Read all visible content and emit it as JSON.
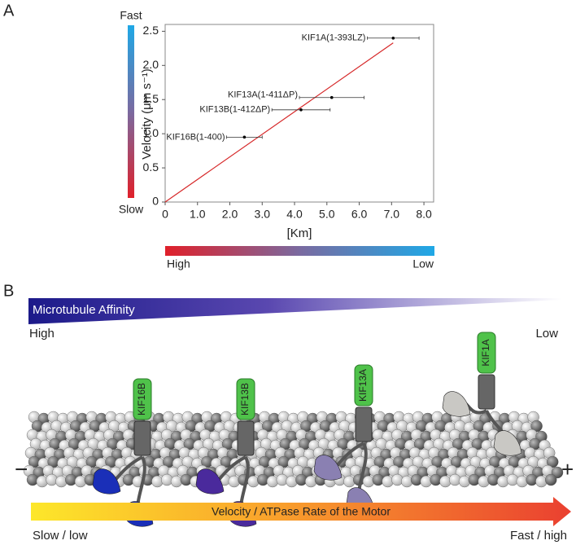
{
  "panel_labels": [
    "A",
    "B"
  ],
  "chart_data": {
    "type": "scatter",
    "xlabel": "[Km]",
    "ylabel": "Velocity (μm s⁻¹)",
    "x": [
      2.45,
      4.2,
      5.15,
      7.05
    ],
    "y": [
      0.95,
      1.35,
      1.53,
      2.4
    ],
    "x_err": [
      0.55,
      0.9,
      1.0,
      0.8
    ],
    "point_labels": [
      "KIF16B(1-400)",
      "KIF13B(1-412ΔP)",
      "KIF13A(1-411ΔP)",
      "KIF1A(1-393LZ)"
    ],
    "color": "#000000",
    "fit_line": {
      "x": [
        0,
        7.05
      ],
      "y": [
        0,
        2.33
      ],
      "color": "#d62728"
    },
    "xlim": [
      0,
      8.3
    ],
    "ylim": [
      0,
      2.6
    ],
    "xticks": [
      0,
      {
        "value": 1,
        "label": "1.0"
      },
      {
        "value": 2,
        "label": "2.0"
      },
      {
        "value": 3,
        "label": "3.0"
      },
      {
        "value": 4,
        "label": "4.0"
      },
      {
        "value": 5,
        "label": "5.0"
      },
      {
        "value": 6,
        "label": "6.0"
      },
      {
        "value": 7,
        "label": "7.0"
      },
      {
        "value": 8,
        "label": "8.0"
      }
    ],
    "yticks": [
      0,
      0.5,
      {
        "value": 1,
        "label": "1.0"
      },
      1.5,
      {
        "value": 2,
        "label": "2.0"
      },
      2.5
    ],
    "speed_bar": {
      "top": "Fast",
      "bottom": "Slow"
    },
    "km_bar": {
      "left": "High",
      "right": "Low"
    }
  },
  "panel_b": {
    "affinity": {
      "title": "Microtubule Affinity",
      "left": "High",
      "right": "Low"
    },
    "motors": [
      "KIF16B",
      "KIF13B",
      "KIF13A",
      "KIF1A"
    ],
    "minus": "−",
    "plus": "+",
    "arrow": {
      "title": "Velocity / ATPase Rate of the Motor",
      "left": "Slow / low",
      "right": "Fast / high"
    }
  }
}
